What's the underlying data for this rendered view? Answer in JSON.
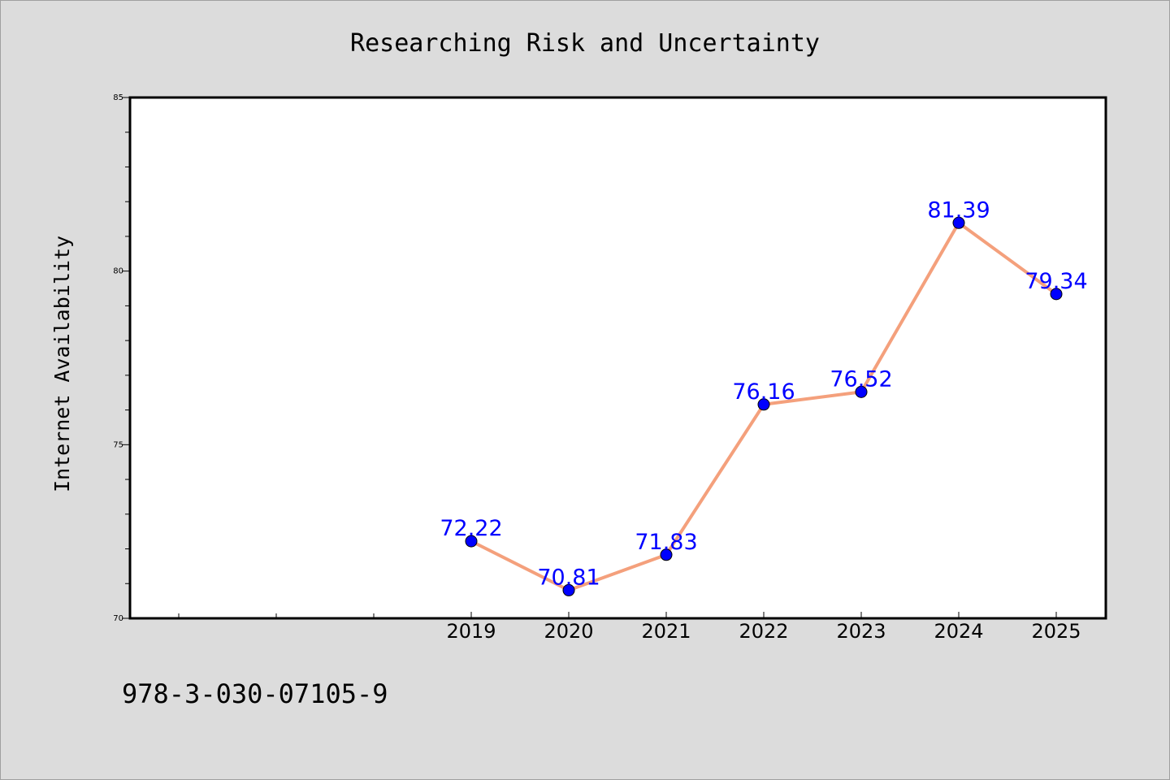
{
  "chart_data": {
    "type": "line",
    "title": "Researching Risk and Uncertainty",
    "xlabel": "",
    "ylabel": "Internet Availability",
    "categories": [
      "2019",
      "2020",
      "2021",
      "2022",
      "2023",
      "2024",
      "2025"
    ],
    "series": [
      {
        "values": [
          72.22,
          70.81,
          71.83,
          76.16,
          76.52,
          81.39,
          79.34
        ],
        "labels": [
          "72.22",
          "70.81",
          "71.83",
          "76.16",
          "76.52",
          "81.39",
          "79.34"
        ],
        "line_color": "#f4a07c",
        "marker_color": "#0000ff"
      }
    ],
    "ylim": [
      70,
      85
    ],
    "yticks": [
      "70",
      "75",
      "80",
      "85"
    ],
    "grid": false,
    "frame": "box"
  },
  "footer": {
    "isbn": "978-3-030-07105-9"
  },
  "colors": {
    "page_background": "#dcdcdc",
    "plot_background": "#ffffff",
    "line": "#f4a07c",
    "marker": "#0000ff",
    "data_label": "#0000ff"
  }
}
